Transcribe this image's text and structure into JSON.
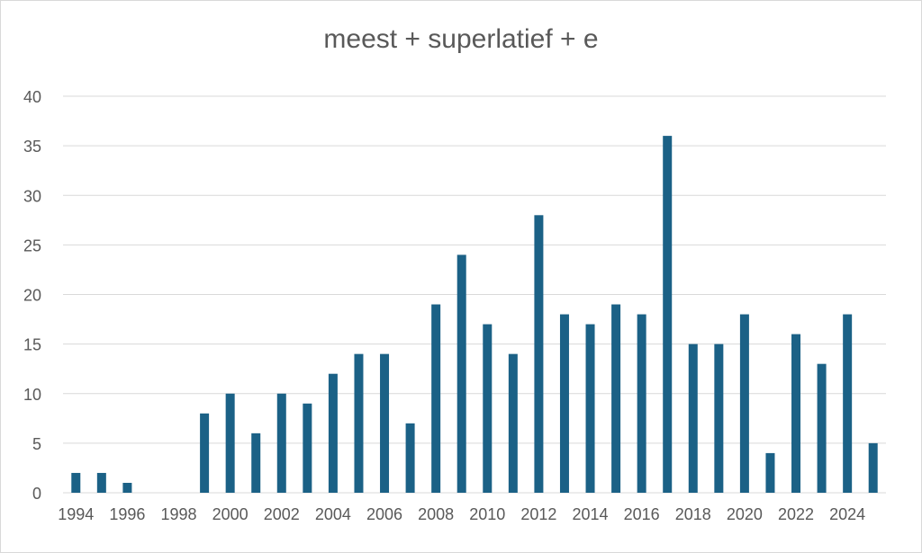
{
  "chart_data": {
    "type": "bar",
    "title": "meest + superlatief + e",
    "xlabel": "",
    "ylabel": "",
    "ylim": [
      0,
      40
    ],
    "yticks": [
      0,
      5,
      10,
      15,
      20,
      25,
      30,
      35,
      40
    ],
    "grid": true,
    "bar_color": "#1b6186",
    "categories": [
      "1994",
      "1995",
      "1996",
      "1997",
      "1998",
      "1999",
      "2000",
      "2001",
      "2002",
      "2003",
      "2004",
      "2005",
      "2006",
      "2007",
      "2008",
      "2009",
      "2010",
      "2011",
      "2012",
      "2013",
      "2014",
      "2015",
      "2016",
      "2017",
      "2018",
      "2019",
      "2020",
      "2021",
      "2022",
      "2023",
      "2024",
      "2025"
    ],
    "xtick_labels": [
      "1994",
      "1996",
      "1998",
      "2000",
      "2002",
      "2004",
      "2006",
      "2008",
      "2010",
      "2012",
      "2014",
      "2016",
      "2018",
      "2020",
      "2022",
      "2024"
    ],
    "values": [
      2,
      2,
      1,
      0,
      0,
      8,
      10,
      6,
      10,
      9,
      12,
      14,
      14,
      7,
      19,
      24,
      17,
      14,
      28,
      18,
      17,
      19,
      18,
      36,
      15,
      15,
      18,
      4,
      16,
      13,
      18,
      5
    ]
  }
}
